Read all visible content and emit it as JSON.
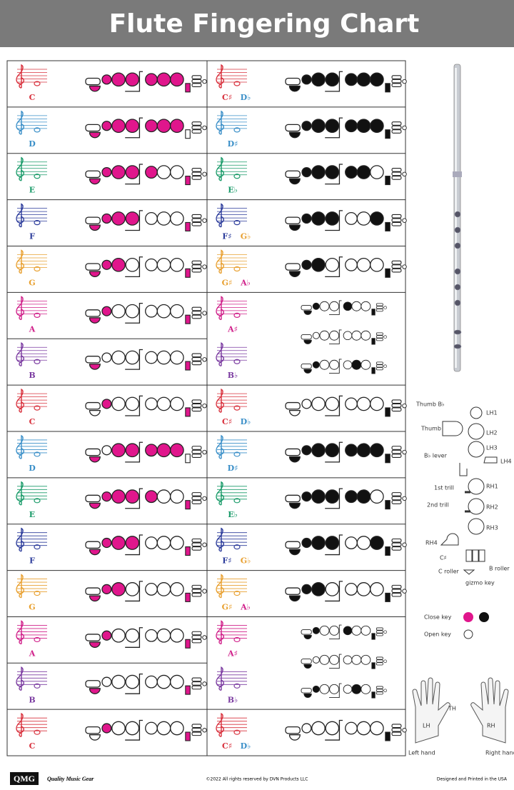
{
  "header": {
    "title": "Flute Fingering Chart"
  },
  "left_column": [
    {
      "note": "C",
      "color": "#d8303c"
    },
    {
      "note": "D",
      "color": "#3a8fc8"
    },
    {
      "note": "E",
      "color": "#189a68"
    },
    {
      "note": "F",
      "color": "#2a3a9a"
    },
    {
      "note": "G",
      "color": "#e8a030"
    },
    {
      "note": "A",
      "color": "#d0208a"
    },
    {
      "note": "B",
      "color": "#7a3aa0"
    },
    {
      "note": "C",
      "color": "#d8303c"
    },
    {
      "note": "D",
      "color": "#3a8fc8"
    },
    {
      "note": "E",
      "color": "#189a68"
    },
    {
      "note": "F",
      "color": "#2a3a9a"
    },
    {
      "note": "G",
      "color": "#e8a030"
    },
    {
      "note": "A",
      "color": "#d0208a"
    },
    {
      "note": "B",
      "color": "#7a3aa0"
    },
    {
      "note": "C",
      "color": "#d8303c"
    }
  ],
  "right_column": [
    {
      "notes": [
        "C♯",
        "D♭"
      ],
      "colors": [
        "#d8303c",
        "#3a8fc8"
      ]
    },
    {
      "notes": [
        "D♯"
      ],
      "colors": [
        "#3a8fc8"
      ]
    },
    {
      "notes": [
        "E♭"
      ],
      "colors": [
        "#189a68"
      ]
    },
    {
      "notes": [
        "F♯",
        "G♭"
      ],
      "colors": [
        "#2a3a9a",
        "#e8a030"
      ]
    },
    {
      "notes": [
        "G♯",
        "A♭"
      ],
      "colors": [
        "#e8a030",
        "#d0208a"
      ]
    },
    {
      "notes": [
        "A♯"
      ],
      "colors": [
        "#d0208a"
      ]
    },
    {
      "notes": [
        "B♭"
      ],
      "colors": [
        "#7a3aa0"
      ]
    },
    {
      "notes": [
        "C♯",
        "D♭"
      ],
      "colors": [
        "#d8303c",
        "#3a8fc8"
      ]
    },
    {
      "notes": [
        "D♯"
      ],
      "colors": [
        "#3a8fc8"
      ]
    },
    {
      "notes": [
        "E♭"
      ],
      "colors": [
        "#189a68"
      ]
    },
    {
      "notes": [
        "F♯",
        "G♭"
      ],
      "colors": [
        "#2a3a9a",
        "#e8a030"
      ]
    },
    {
      "notes": [
        "G♯",
        "A♭"
      ],
      "colors": [
        "#e8a030",
        "#d0208a"
      ]
    },
    {
      "notes": [
        "A♯"
      ],
      "colors": [
        "#d0208a"
      ]
    },
    {
      "notes": [
        "B♭"
      ],
      "colors": [
        "#7a3aa0"
      ]
    },
    {
      "notes": [
        "C♯",
        "D♭"
      ],
      "colors": [
        "#d8303c",
        "#3a8fc8"
      ]
    }
  ],
  "key_diagram": {
    "thumb_bb": "Thumb B♭",
    "lh1": "LH1",
    "thumb": "Thumb",
    "lh2": "LH2",
    "lh3": "LH3",
    "lh4": "LH4",
    "bb_lever": "B♭ lever",
    "trill1": "1st trill",
    "rh1": "RH1",
    "trill2": "2nd trill",
    "rh2": "RH2",
    "rh3": "RH3",
    "rh4": "RH4",
    "cs": "C♯",
    "b_roller": "B roller",
    "c_roller": "C roller",
    "gizmo": "gizmo key"
  },
  "legend": {
    "closed": "Close key",
    "open": "Open key"
  },
  "hands": {
    "left": "Left hand",
    "right": "Right hand",
    "left_short": "LH",
    "right_short": "RH",
    "thumb": "TH"
  },
  "footer": {
    "logo": "QMG",
    "brand": "Quality Music Gear",
    "copyright": "©2022 All rights reserved by DVN Products LLC",
    "origin": "Designed and Printed in the USA"
  }
}
